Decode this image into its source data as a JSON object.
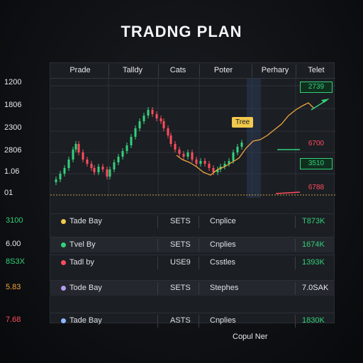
{
  "title": "TRADNG PLAN",
  "columns": [
    "Prade",
    "Talldy",
    "Cats",
    "Poter",
    "Perhary",
    "Telet"
  ],
  "y_labels": [
    "1200",
    "1806",
    "2300",
    "2806",
    "1.06",
    "01"
  ],
  "markers": {
    "tree_label": "Tree",
    "tags": [
      {
        "text": "2739",
        "color": "#33d17a"
      },
      {
        "text": "6700",
        "color": "#ff4d5e"
      },
      {
        "text": "3510",
        "color": "#33d17a"
      },
      {
        "text": "6788",
        "color": "#ff4d5e"
      }
    ]
  },
  "rows": [
    {
      "left": "3100",
      "left_color": "#33d17a",
      "dot_color": "#f2c94c",
      "name": "Tade Bay",
      "code": "SETS",
      "type": "Cnplice",
      "value": "T873K",
      "value_color": "#33d17a"
    },
    {
      "left": "6.00",
      "left_color": "#e6e8eb",
      "dot_color": "#33d17a",
      "name": "Tvel By",
      "code": "SETS",
      "type": "Cnplies",
      "value": "1674K",
      "value_color": "#33d17a"
    },
    {
      "left": "8S3X",
      "left_color": "#33d17a",
      "dot_color": "#ff4d5e",
      "name": "Tadl by",
      "code": "USE9",
      "type": "Csstles",
      "value": "1393K",
      "value_color": "#33d17a"
    },
    {
      "left": "5.83",
      "left_color": "#f2a541",
      "dot_color": "#b49cf0",
      "name": "Tode Bay",
      "code": "SETS",
      "type": "Stephes",
      "value": "7.0SAK",
      "value_color": "#e6e8eb"
    },
    {
      "left": "7.68",
      "left_color": "#ff4d5e",
      "dot_color": "#8fb8ff",
      "name": "Tade Bay",
      "code": "ASTS",
      "type": "Cnplies",
      "value": "1830K",
      "value_color": "#33d17a"
    }
  ],
  "footer": "Copul Ner"
}
